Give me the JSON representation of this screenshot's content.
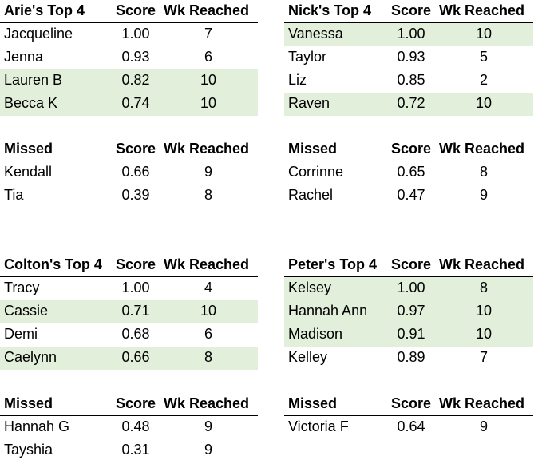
{
  "tables": [
    {
      "header": [
        "Arie's Top 4",
        "Score",
        "Wk Reached"
      ],
      "rows": [
        [
          "Jacqueline",
          "1.00",
          "7"
        ],
        [
          "Jenna",
          "0.93",
          "6"
        ],
        [
          "Lauren B",
          "0.82",
          "10"
        ],
        [
          "Becca K",
          "0.74",
          "10"
        ]
      ],
      "highlighted_rows": [
        2,
        3
      ]
    },
    {
      "header": [
        "Missed",
        "Score",
        "Wk Reached"
      ],
      "rows": [
        [
          "Kendall",
          "0.66",
          "9"
        ],
        [
          "Tia",
          "0.39",
          "8"
        ]
      ],
      "highlighted_rows": []
    },
    {
      "header": [
        "Nick's Top 4",
        "Score",
        "Wk Reached"
      ],
      "rows": [
        [
          "Vanessa",
          "1.00",
          "10"
        ],
        [
          "Taylor",
          "0.93",
          "5"
        ],
        [
          "Liz",
          "0.85",
          "2"
        ],
        [
          "Raven",
          "0.72",
          "10"
        ]
      ],
      "highlighted_rows": [
        0,
        3
      ]
    },
    {
      "header": [
        "Missed",
        "Score",
        "Wk Reached"
      ],
      "rows": [
        [
          "Corrinne",
          "0.65",
          "8"
        ],
        [
          "Rachel",
          "0.47",
          "9"
        ]
      ],
      "highlighted_rows": []
    },
    {
      "header": [
        "Colton's Top 4",
        "Score",
        "Wk Reached"
      ],
      "rows": [
        [
          "Tracy",
          "1.00",
          "4"
        ],
        [
          "Cassie",
          "0.71",
          "10"
        ],
        [
          "Demi",
          "0.68",
          "6"
        ],
        [
          "Caelynn",
          "0.66",
          "8"
        ]
      ],
      "highlighted_rows": [
        1,
        3
      ]
    },
    {
      "header": [
        "Missed",
        "Score",
        "Wk Reached"
      ],
      "rows": [
        [
          "Hannah G",
          "0.48",
          "9"
        ],
        [
          "Tayshia",
          "0.31",
          "9"
        ]
      ],
      "highlighted_rows": []
    },
    {
      "header": [
        "Peter's Top 4",
        "Score",
        "Wk Reached"
      ],
      "rows": [
        [
          "Kelsey",
          "1.00",
          "8"
        ],
        [
          "Hannah Ann",
          "0.97",
          "10"
        ],
        [
          "Madison",
          "0.91",
          "10"
        ],
        [
          "Kelley",
          "0.89",
          "7"
        ]
      ],
      "highlighted_rows": [
        0,
        1,
        2
      ]
    },
    {
      "header": [
        "Missed",
        "Score",
        "Wk Reached"
      ],
      "rows": [
        [
          "Victoria F",
          "0.64",
          "9"
        ]
      ],
      "highlighted_rows": []
    }
  ]
}
